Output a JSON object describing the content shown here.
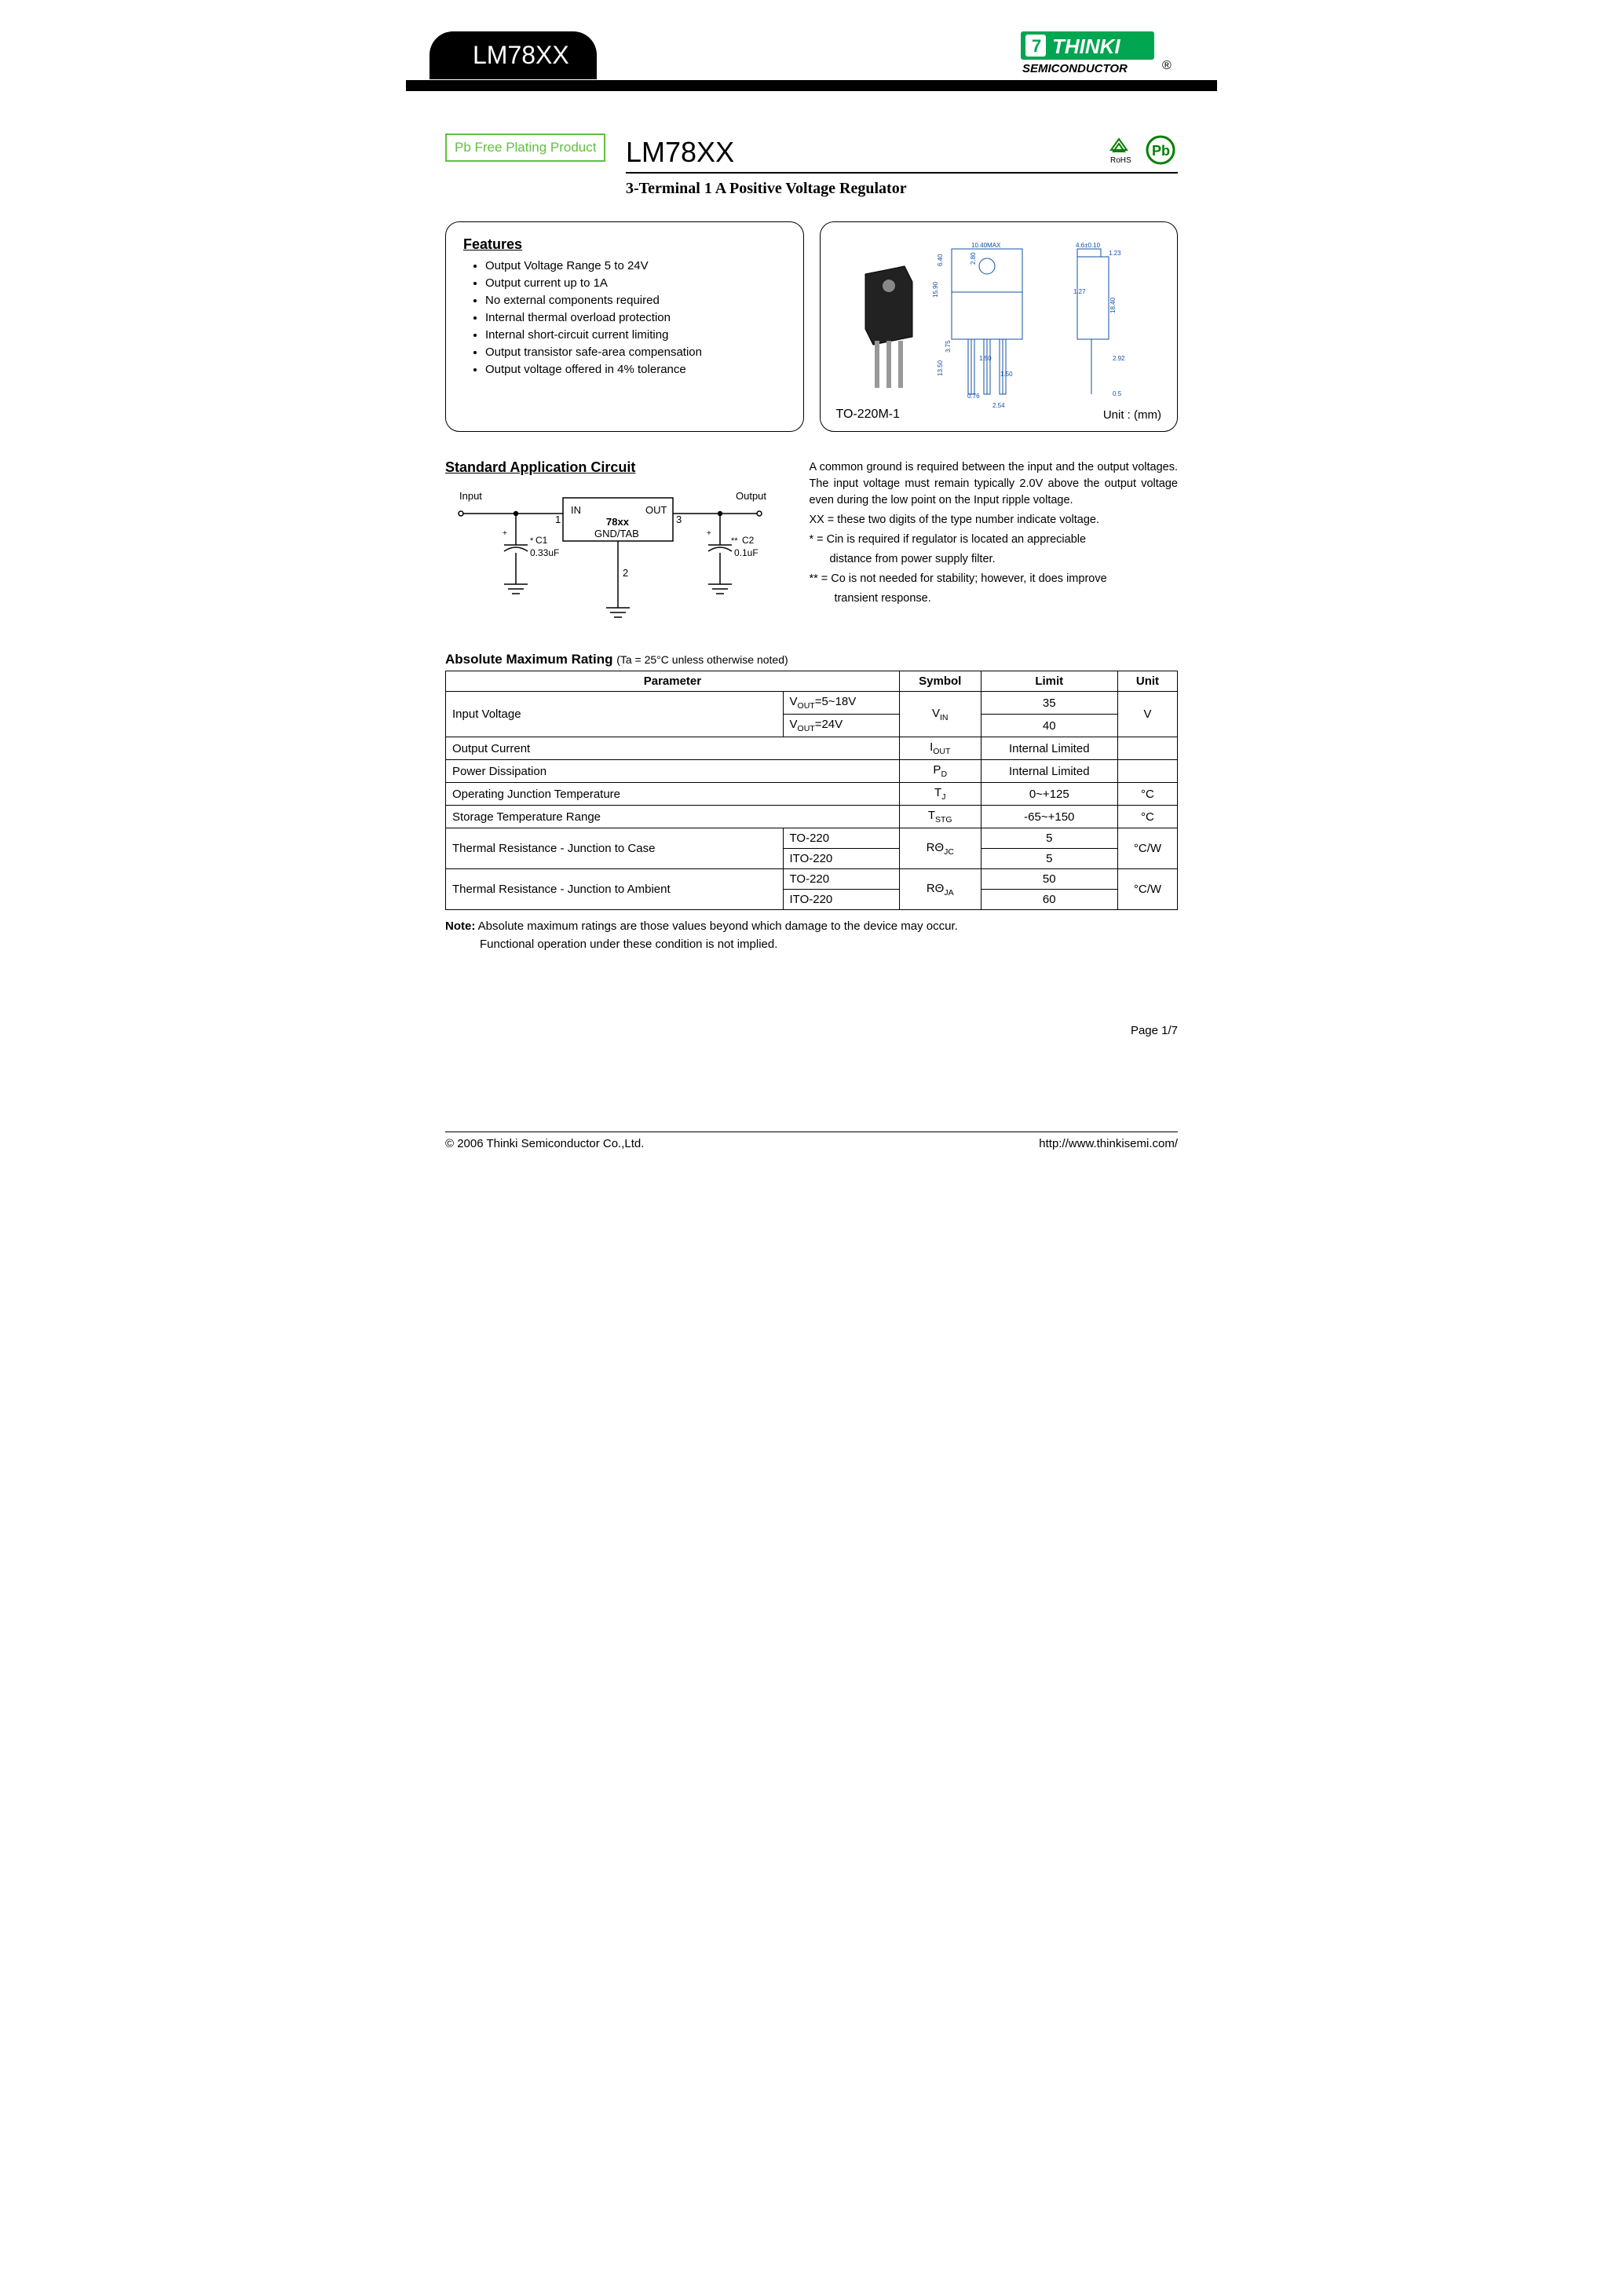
{
  "header": {
    "tab": "LM78XX",
    "logo_top": "THINKI",
    "logo_bottom": "SEMICONDUCTOR",
    "logo_reg": "®"
  },
  "badge": {
    "green": "Pb Free Plating Product",
    "rohs": "RoHS",
    "pb": "Pb"
  },
  "title": "LM78XX",
  "subtitle": "3-Terminal 1 A Positive Voltage Regulator",
  "features": {
    "heading": "Features",
    "items": [
      "Output Voltage Range 5 to 24V",
      "Output current up to 1A",
      "No external components required",
      "Internal thermal overload protection",
      "Internal short-circuit current limiting",
      "Output transistor safe-area compensation",
      "Output voltage offered in 4% tolerance"
    ]
  },
  "package": {
    "label": "TO-220M-1",
    "unit": "Unit : (mm)",
    "dims": {
      "body_w": "10.40MAX",
      "tab_w": "4.6±0.10",
      "tab_t": "1.23",
      "hole_y": "2.80",
      "body_h_upper": "6.40",
      "body_h": "15.90",
      "lead_t": "1.27",
      "total_h": "18.40",
      "lead_gap": "3.75",
      "lead_len": "13.50",
      "lead_w": "1.50",
      "lead_sp": "1.50",
      "lead_thk": "0.76",
      "span": "2.54",
      "side1": "2.92",
      "side2": "0.5"
    }
  },
  "app": {
    "heading": "Standard Application Circuit",
    "labels": {
      "input": "Input",
      "output": "Output",
      "in": "IN",
      "out": "OUT",
      "gnd": "GND/TAB",
      "part": "78xx",
      "c1_name": "C1",
      "c1_val": "0.33uF",
      "c1_mark": "*",
      "c2_name": "C2",
      "c2_val": "0.1uF",
      "c2_mark": "**",
      "pin1": "1",
      "pin2": "2",
      "pin3": "3"
    },
    "notes": {
      "p1": "A common ground is required between the input and the output voltages. The input voltage must remain typically 2.0V above the output voltage even during the low point on the Input ripple voltage.",
      "p2": "XX = these two digits of the type number indicate voltage.",
      "p3a": "* = Cin is required if regulator is located an appreciable",
      "p3b": "distance from power supply filter.",
      "p4a": "** = Co is not needed for stability; however, it does improve",
      "p4b": "transient response."
    }
  },
  "amr": {
    "title": "Absolute Maximum Rating",
    "sub": "(Ta = 25°C unless otherwise noted)",
    "cols": [
      "Parameter",
      "Symbol",
      "Limit",
      "Unit"
    ],
    "rows": {
      "vin_label": "Input Voltage",
      "vin_cond1": "V<sub>OUT</sub>=5~18V",
      "vin_cond2": "V<sub>OUT</sub>=24V",
      "vin_sym": "V<sub>IN</sub>",
      "vin_lim1": "35",
      "vin_lim2": "40",
      "vin_unit": "V",
      "iout_label": "Output Current",
      "iout_sym": "I<sub>OUT</sub>",
      "iout_lim": "Internal Limited",
      "pd_label": "Power Dissipation",
      "pd_sym": "P<sub>D</sub>",
      "pd_lim": "Internal Limited",
      "tj_label": "Operating Junction Temperature",
      "tj_sym": "T<sub>J</sub>",
      "tj_lim": "0~+125",
      "tj_unit": "°C",
      "tstg_label": "Storage Temperature Range",
      "tstg_sym": "T<sub>STG</sub>",
      "tstg_lim": "-65~+150",
      "tstg_unit": "°C",
      "rjc_label": "Thermal Resistance - Junction to Case",
      "rjc_pkg1": "TO-220",
      "rjc_pkg2": "ITO-220",
      "rjc_sym": "RΘ<sub>JC</sub>",
      "rjc_lim1": "5",
      "rjc_lim2": "5",
      "rjc_unit": "°C/W",
      "rja_label": "Thermal Resistance - Junction to Ambient",
      "rja_pkg1": "TO-220",
      "rja_pkg2": "ITO-220",
      "rja_sym": "RΘ<sub>JA</sub>",
      "rja_lim1": "50",
      "rja_lim2": "60",
      "rja_unit": "°C/W"
    }
  },
  "note": {
    "line1": "Note: Absolute maximum ratings are those values beyond which damage to the device may occur.",
    "line2": "Functional operation under these condition is not implied."
  },
  "footer": {
    "page": "Page 1/7",
    "copy": "© 2006 Thinki Semiconductor Co.,Ltd.",
    "url": "http://www.thinkisemi.com/"
  },
  "colors": {
    "green": "#60c040",
    "blue": "#1050a5",
    "black": "#000000"
  }
}
